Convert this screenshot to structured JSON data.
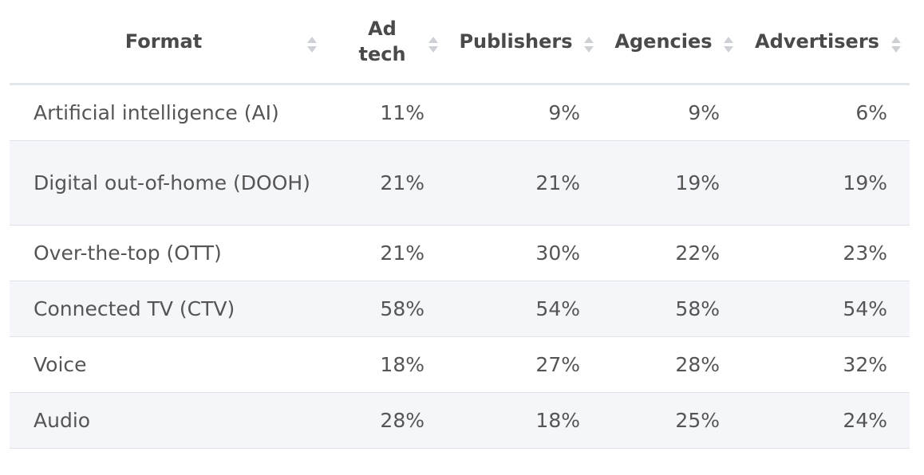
{
  "table": {
    "columns": [
      "Format",
      "Ad tech",
      "Publishers",
      "Agencies",
      "Advertisers"
    ],
    "rows": [
      [
        "Artificial intelligence (AI)",
        "11%",
        "9%",
        "9%",
        "6%"
      ],
      [
        "Digital out-of-home (DOOH)",
        "21%",
        "21%",
        "19%",
        "19%"
      ],
      [
        "Over-the-top (OTT)",
        "21%",
        "30%",
        "22%",
        "23%"
      ],
      [
        "Connected TV (CTV)",
        "58%",
        "54%",
        "58%",
        "54%"
      ],
      [
        "Voice",
        "18%",
        "27%",
        "28%",
        "32%"
      ],
      [
        "Audio",
        "28%",
        "18%",
        "25%",
        "24%"
      ]
    ]
  }
}
